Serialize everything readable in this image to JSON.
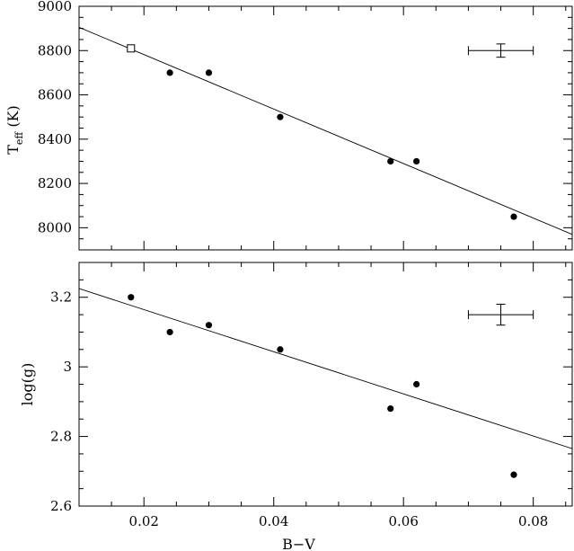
{
  "chart_data": [
    {
      "type": "scatter",
      "title": "",
      "xlabel": "",
      "ylabel_main": "T",
      "ylabel_sub": "eff",
      "ylabel_unit": " (K)",
      "xlim": [
        0.01,
        0.086
      ],
      "ylim": [
        7900,
        9000
      ],
      "x_ticks": [
        0.02,
        0.04,
        0.06,
        0.08
      ],
      "x_tick_labels_shown": false,
      "y_ticks": [
        8000,
        8200,
        8400,
        8600,
        8800,
        9000
      ],
      "y_tick_labels": [
        "8000",
        "8200",
        "8400",
        "8600",
        "8800",
        "9000"
      ],
      "series": [
        {
          "marker": "filled-circle",
          "x": [
            0.024,
            0.03,
            0.041,
            0.058,
            0.062,
            0.077
          ],
          "y": [
            8700,
            8700,
            8500,
            8300,
            8300,
            8050
          ]
        },
        {
          "marker": "open-square",
          "x": [
            0.018
          ],
          "y": [
            8810
          ]
        }
      ],
      "fit_line": {
        "x": [
          0.01,
          0.086
        ],
        "y": [
          8905,
          7970
        ]
      },
      "error_bar": {
        "x": 0.075,
        "y": 8800,
        "xerr": 0.005,
        "yerr": 30
      }
    },
    {
      "type": "scatter",
      "title": "",
      "xlabel": "B−V",
      "ylabel": "log(g)",
      "xlim": [
        0.01,
        0.086
      ],
      "ylim": [
        2.6,
        3.3
      ],
      "x_ticks": [
        0.02,
        0.04,
        0.06,
        0.08
      ],
      "x_tick_labels": [
        "0.02",
        "0.04",
        "0.06",
        "0.08"
      ],
      "y_ticks": [
        2.6,
        2.8,
        3.0,
        3.2
      ],
      "y_tick_labels": [
        "2.6",
        "2.8",
        "3",
        "3.2"
      ],
      "series": [
        {
          "marker": "filled-circle",
          "x": [
            0.018,
            0.024,
            0.03,
            0.041,
            0.058,
            0.062,
            0.077
          ],
          "y": [
            3.2,
            3.1,
            3.12,
            3.05,
            2.88,
            2.95,
            2.69
          ]
        }
      ],
      "fit_line": {
        "x": [
          0.01,
          0.086
        ],
        "y": [
          3.225,
          2.765
        ]
      },
      "error_bar": {
        "x": 0.075,
        "y": 3.15,
        "xerr": 0.005,
        "yerr": 0.03
      }
    }
  ]
}
